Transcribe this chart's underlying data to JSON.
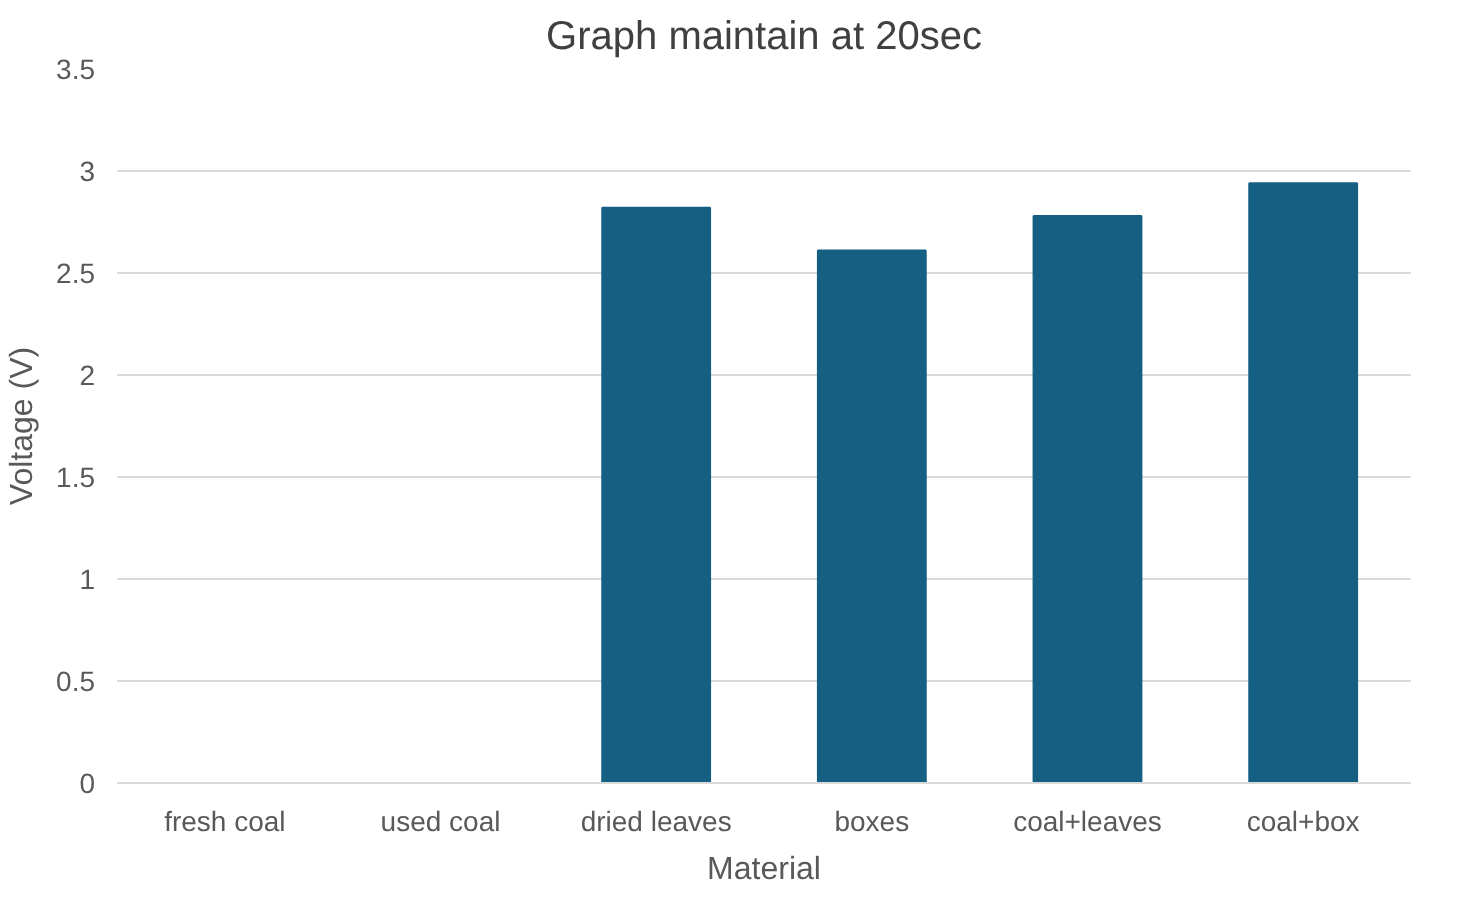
{
  "chart_data": {
    "type": "bar",
    "title": "Graph maintain at 20sec",
    "xlabel": "Material",
    "ylabel": "Voltage (V)",
    "categories": [
      "fresh coal",
      "used coal",
      "dried leaves",
      "boxes",
      "coal+leaves",
      "coal+box"
    ],
    "values": [
      0,
      0,
      2.82,
      2.61,
      2.78,
      2.94
    ],
    "color": "#156082",
    "ylim": [
      0,
      3.5
    ],
    "yticks": [
      {
        "value": 0,
        "label": "0"
      },
      0.5,
      1,
      1.5,
      2,
      2.5,
      3,
      3.5
    ],
    "grid": "y"
  }
}
